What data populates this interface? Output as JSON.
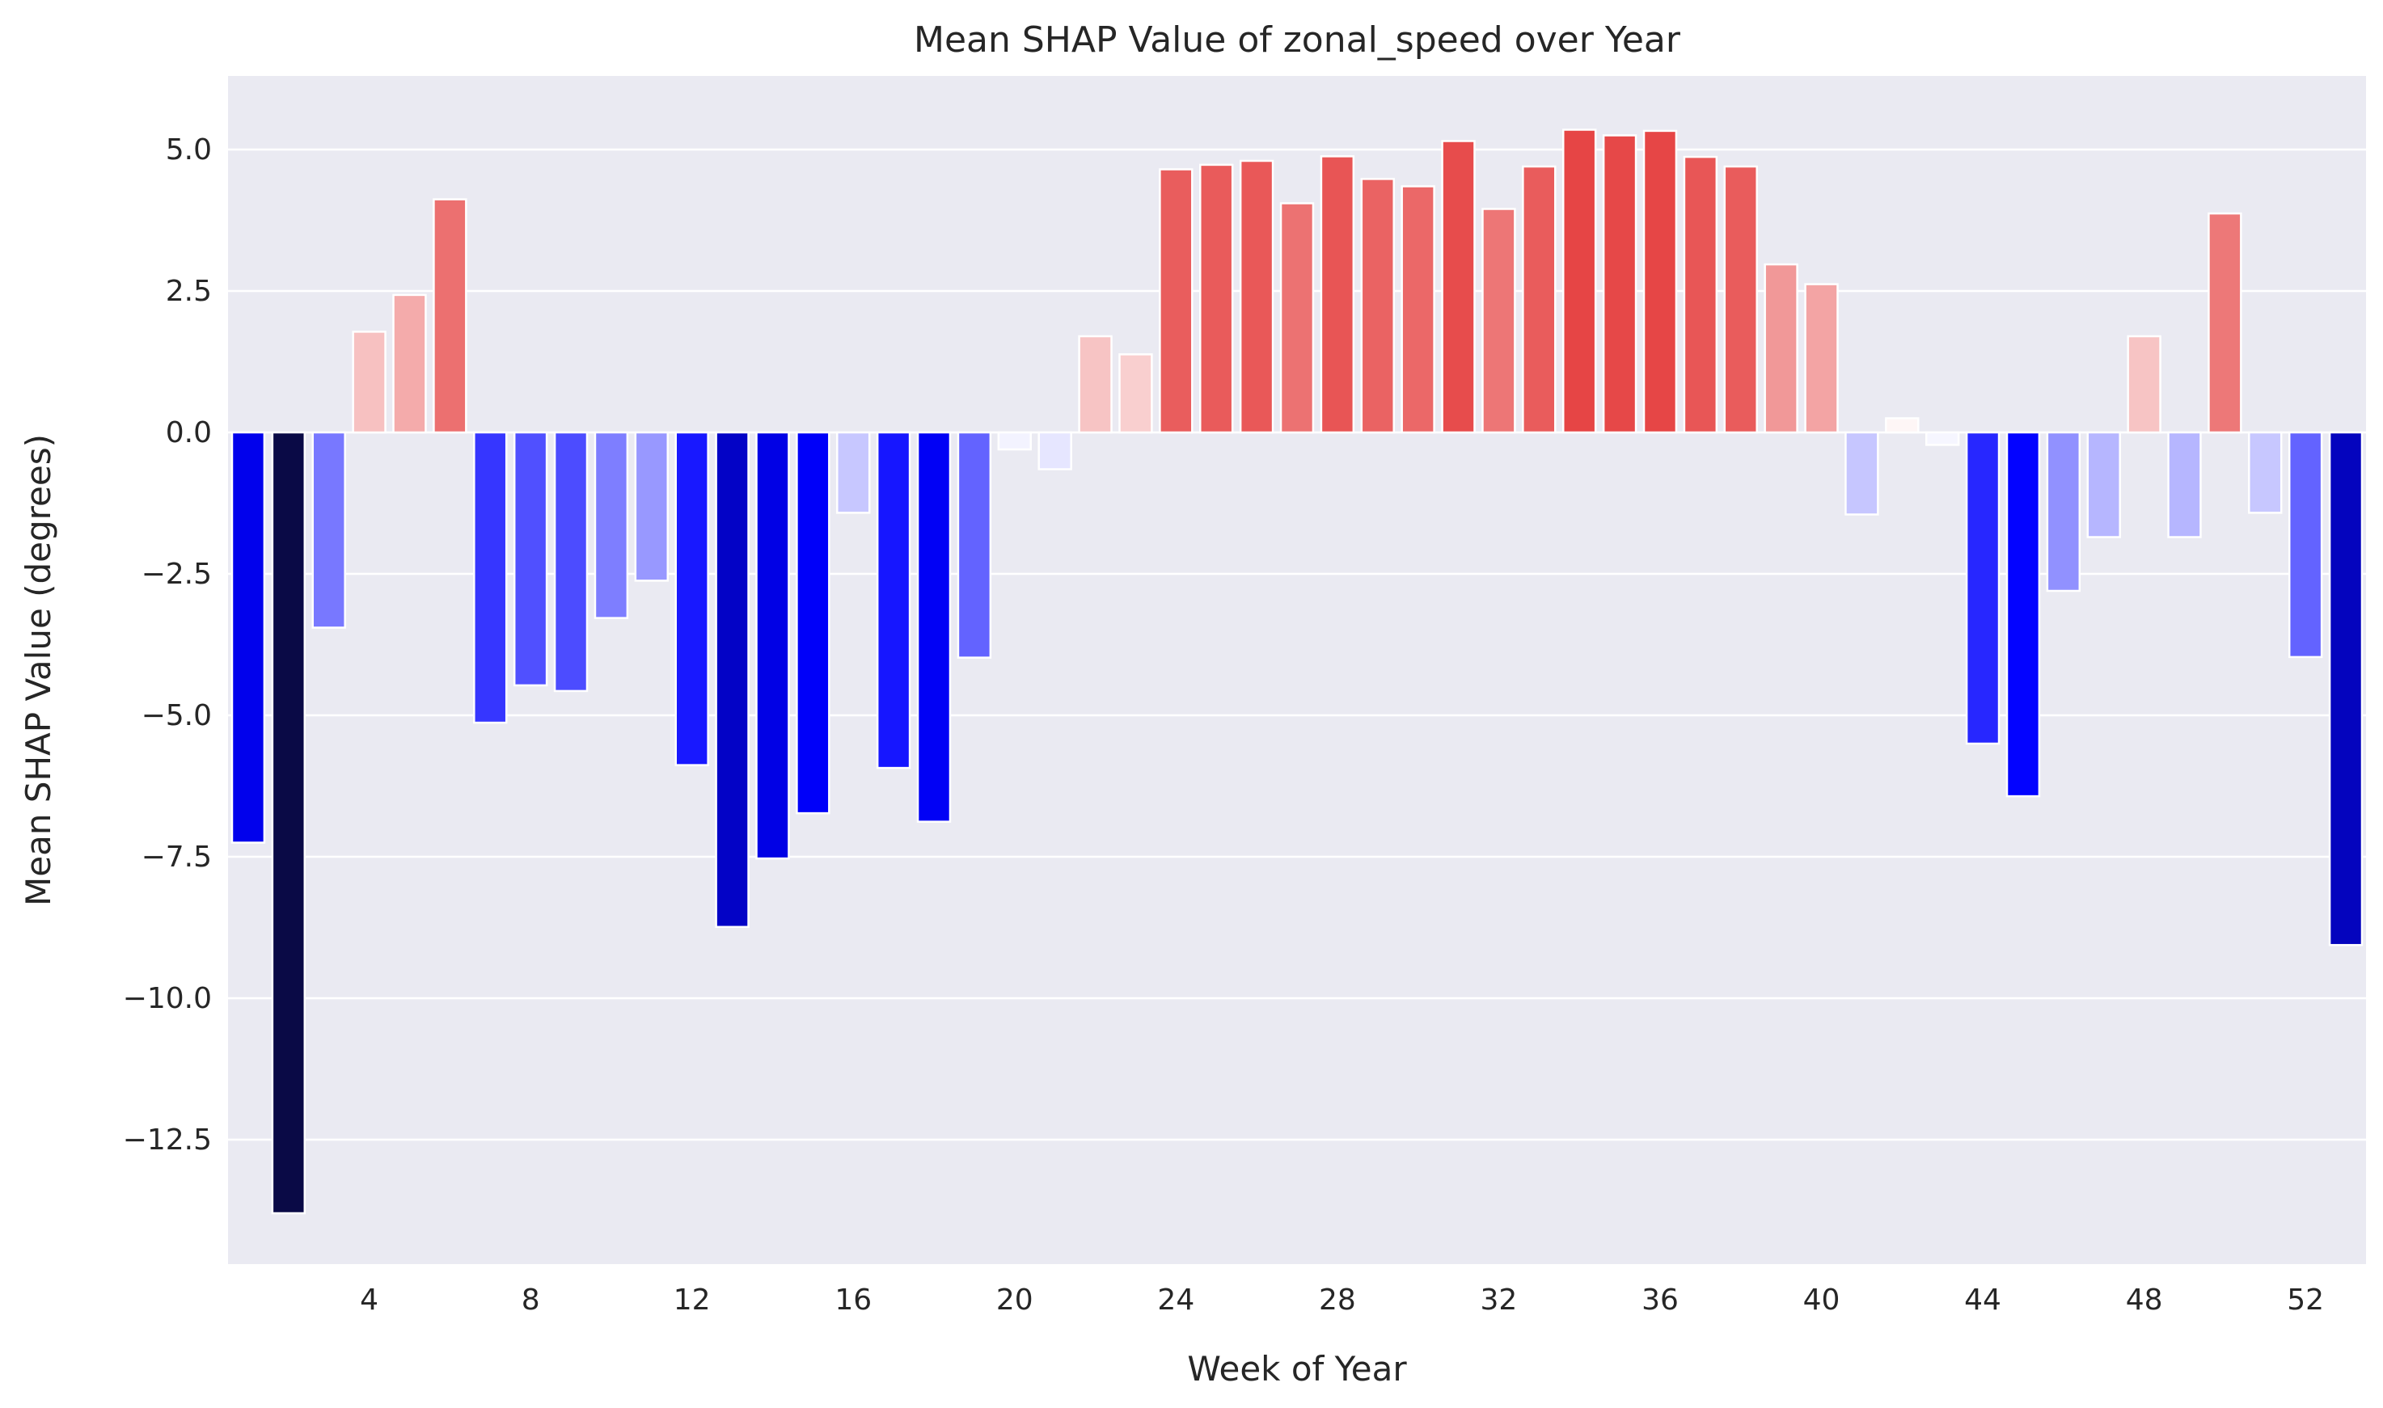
{
  "chart_data": {
    "type": "bar",
    "title": "Mean SHAP Value of zonal_speed over Year",
    "xlabel": "Week of Year",
    "ylabel": "Mean SHAP Value (degrees)",
    "ylim": [
      -14.7,
      6.3
    ],
    "yticks": [
      5.0,
      2.5,
      0.0,
      -2.5,
      -5.0,
      -7.5,
      -10.0,
      -12.5
    ],
    "ytick_labels": [
      "5.0",
      "2.5",
      "0.0",
      "−2.5",
      "−5.0",
      "−7.5",
      "−10.0",
      "−12.5"
    ],
    "xtick_labels": [
      "4",
      "8",
      "12",
      "16",
      "20",
      "24",
      "28",
      "32",
      "36",
      "40",
      "44",
      "48",
      "52"
    ],
    "xtick_weeks": [
      4,
      8,
      12,
      16,
      20,
      24,
      28,
      32,
      36,
      40,
      44,
      48,
      52
    ],
    "grid": true,
    "background_color": "#eaeaf2",
    "color_scale": {
      "negative": "#0000ff",
      "positive": "#e64545",
      "extreme_negative": "#0a0a46",
      "neutral": "#ffffff"
    },
    "x": [
      1,
      2,
      3,
      4,
      5,
      6,
      7,
      8,
      9,
      10,
      11,
      12,
      13,
      14,
      15,
      16,
      17,
      18,
      19,
      20,
      21,
      22,
      23,
      24,
      25,
      26,
      27,
      28,
      29,
      30,
      31,
      32,
      33,
      34,
      35,
      36,
      37,
      38,
      39,
      40,
      41,
      42,
      43,
      44,
      45,
      46,
      47,
      48,
      49,
      50,
      51,
      52,
      53
    ],
    "values": [
      -7.25,
      -13.8,
      -3.45,
      1.78,
      2.43,
      4.12,
      -5.13,
      -4.47,
      -4.57,
      -3.28,
      -2.62,
      -5.88,
      -8.74,
      -7.53,
      -6.73,
      -1.42,
      -5.93,
      -6.88,
      -3.98,
      -0.3,
      -0.65,
      1.7,
      1.38,
      4.65,
      4.73,
      4.8,
      4.05,
      4.88,
      4.48,
      4.35,
      5.15,
      3.95,
      4.7,
      5.35,
      5.25,
      5.33,
      4.87,
      4.7,
      2.97,
      2.62,
      -1.45,
      0.25,
      -0.22,
      -5.5,
      -6.43,
      -2.8,
      -1.85,
      1.7,
      -1.85,
      3.87,
      -1.42,
      -3.97,
      -9.06
    ]
  }
}
